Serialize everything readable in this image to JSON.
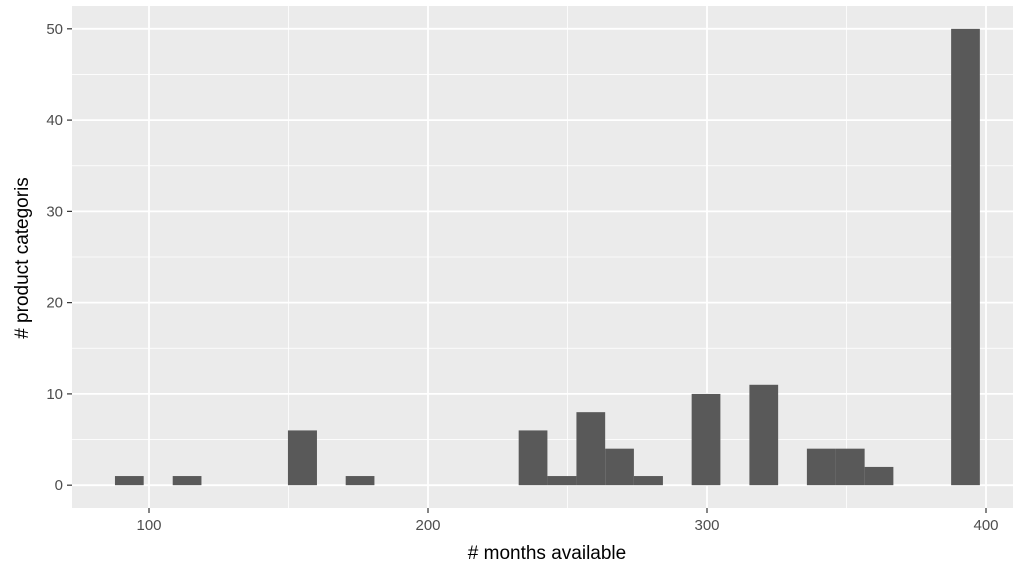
{
  "chart_data": {
    "type": "bar",
    "title": "",
    "xlabel": "# months available",
    "ylabel": "# product categoris",
    "xlim": [
      72,
      1013
    ],
    "ylim": [
      -2.5,
      52.5
    ],
    "xticks": [
      100,
      200,
      300,
      400
    ],
    "yticks": [
      0,
      10,
      20,
      30,
      40,
      50
    ],
    "grid": true,
    "bins": [
      {
        "x0": 87.8,
        "x1": 98.1,
        "count": 1
      },
      {
        "x0": 108.5,
        "x1": 118.8,
        "count": 1
      },
      {
        "x0": 149.8,
        "x1": 160.2,
        "count": 6
      },
      {
        "x0": 170.5,
        "x1": 180.8,
        "count": 1
      },
      {
        "x0": 232.5,
        "x1": 242.8,
        "count": 6
      },
      {
        "x0": 242.8,
        "x1": 253.2,
        "count": 1
      },
      {
        "x0": 253.2,
        "x1": 263.5,
        "count": 8
      },
      {
        "x0": 263.5,
        "x1": 273.8,
        "count": 4
      },
      {
        "x0": 273.8,
        "x1": 284.2,
        "count": 1
      },
      {
        "x0": 294.5,
        "x1": 304.8,
        "count": 10
      },
      {
        "x0": 315.2,
        "x1": 325.5,
        "count": 11
      },
      {
        "x0": 335.8,
        "x1": 346.2,
        "count": 4
      },
      {
        "x0": 346.2,
        "x1": 356.5,
        "count": 4
      },
      {
        "x0": 356.5,
        "x1": 366.8,
        "count": 2
      },
      {
        "x0": 387.5,
        "x1": 397.8,
        "count": 50
      }
    ],
    "colors": {
      "panel": "#ebebeb",
      "grid": "#ffffff",
      "bar": "#595959",
      "tick": "#333333"
    }
  }
}
